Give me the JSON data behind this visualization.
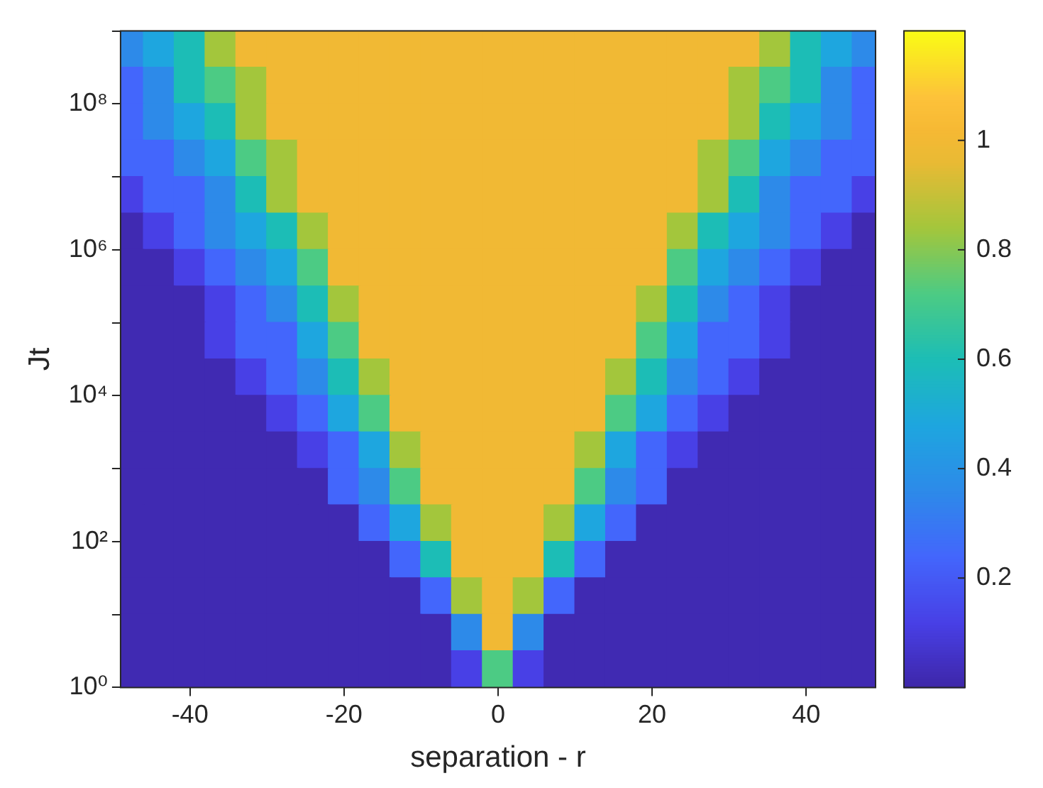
{
  "chart_data": {
    "type": "heatmap",
    "xlabel": "separation - r",
    "ylabel": "Jt",
    "x": [
      -48,
      -44,
      -40,
      -36,
      -32,
      -28,
      -24,
      -20,
      -16,
      -12,
      -8,
      -4,
      0,
      4,
      8,
      12,
      16,
      20,
      24,
      28,
      32,
      36,
      40,
      44,
      48
    ],
    "y": [
      562000000,
      178000000,
      56200000,
      17800000,
      5620000,
      1780000,
      562000,
      178000,
      56200,
      17800,
      5620,
      1780,
      562,
      178,
      56.2,
      17.8,
      5.62,
      1.78
    ],
    "xlim": [
      -49,
      49
    ],
    "xticks": [
      -40,
      -20,
      0,
      20,
      40
    ],
    "ylim": [
      1,
      1000000000
    ],
    "log": "y",
    "yticks": [
      {
        "value": 1,
        "label": "10⁰"
      },
      {
        "value": 10,
        "label": null
      },
      {
        "value": 100,
        "label": "10²"
      },
      {
        "value": 1000,
        "label": null
      },
      {
        "value": 10000,
        "label": "10⁴"
      },
      {
        "value": 100000,
        "label": null
      },
      {
        "value": 1000000,
        "label": "10⁶"
      },
      {
        "value": 10000000,
        "label": null
      },
      {
        "value": 100000000,
        "label": "10⁸"
      },
      {
        "value": 1000000000,
        "label": null
      }
    ],
    "clim": [
      0,
      1.2
    ],
    "cticks": [
      0.2,
      0.4,
      0.6,
      0.8,
      1
    ],
    "cells": [
      [
        0.36,
        0.48,
        0.6,
        0.84,
        1,
        1,
        1,
        1,
        1,
        1,
        1,
        1,
        1,
        1,
        1,
        1,
        1,
        1,
        1,
        1,
        1,
        0.84,
        0.6,
        0.48,
        0.36
      ],
      [
        0.24,
        0.36,
        0.6,
        0.72,
        0.84,
        1,
        1,
        1,
        1,
        1,
        1,
        1,
        1,
        1,
        1,
        1,
        1,
        1,
        1,
        1,
        0.84,
        0.72,
        0.6,
        0.36,
        0.24
      ],
      [
        0.24,
        0.36,
        0.48,
        0.6,
        0.84,
        1,
        1,
        1,
        1,
        1,
        1,
        1,
        1,
        1,
        1,
        1,
        1,
        1,
        1,
        1,
        0.84,
        0.6,
        0.48,
        0.36,
        0.24
      ],
      [
        0.24,
        0.24,
        0.36,
        0.48,
        0.72,
        0.84,
        1,
        1,
        1,
        1,
        1,
        1,
        1,
        1,
        1,
        1,
        1,
        1,
        1,
        0.84,
        0.72,
        0.48,
        0.36,
        0.24,
        0.24
      ],
      [
        0.12,
        0.24,
        0.24,
        0.36,
        0.6,
        0.84,
        1,
        1,
        1,
        1,
        1,
        1,
        1,
        1,
        1,
        1,
        1,
        1,
        1,
        0.84,
        0.6,
        0.36,
        0.24,
        0.24,
        0.12
      ],
      [
        0.02,
        0.12,
        0.24,
        0.36,
        0.48,
        0.6,
        0.84,
        1,
        1,
        1,
        1,
        1,
        1,
        1,
        1,
        1,
        1,
        1,
        0.84,
        0.6,
        0.48,
        0.36,
        0.24,
        0.12,
        0.02
      ],
      [
        0.02,
        0.02,
        0.12,
        0.24,
        0.36,
        0.48,
        0.72,
        1,
        1,
        1,
        1,
        1,
        1,
        1,
        1,
        1,
        1,
        1,
        0.72,
        0.48,
        0.36,
        0.24,
        0.12,
        0.02,
        0.02
      ],
      [
        0.02,
        0.02,
        0.02,
        0.12,
        0.24,
        0.36,
        0.6,
        0.84,
        1,
        1,
        1,
        1,
        1,
        1,
        1,
        1,
        1,
        0.84,
        0.6,
        0.36,
        0.24,
        0.12,
        0.02,
        0.02,
        0.02
      ],
      [
        0.02,
        0.02,
        0.02,
        0.12,
        0.24,
        0.24,
        0.48,
        0.72,
        1,
        1,
        1,
        1,
        1,
        1,
        1,
        1,
        1,
        0.72,
        0.48,
        0.24,
        0.24,
        0.12,
        0.02,
        0.02,
        0.02
      ],
      [
        0.02,
        0.02,
        0.02,
        0.02,
        0.12,
        0.24,
        0.36,
        0.6,
        0.84,
        1,
        1,
        1,
        1,
        1,
        1,
        1,
        0.84,
        0.6,
        0.36,
        0.24,
        0.12,
        0.02,
        0.02,
        0.02,
        0.02
      ],
      [
        0.02,
        0.02,
        0.02,
        0.02,
        0.02,
        0.12,
        0.24,
        0.48,
        0.72,
        1,
        1,
        1,
        1,
        1,
        1,
        1,
        0.72,
        0.48,
        0.24,
        0.12,
        0.02,
        0.02,
        0.02,
        0.02,
        0.02
      ],
      [
        0.02,
        0.02,
        0.02,
        0.02,
        0.02,
        0.02,
        0.12,
        0.24,
        0.48,
        0.84,
        1,
        1,
        1,
        1,
        1,
        0.84,
        0.48,
        0.24,
        0.12,
        0.02,
        0.02,
        0.02,
        0.02,
        0.02,
        0.02
      ],
      [
        0.02,
        0.02,
        0.02,
        0.02,
        0.02,
        0.02,
        0.02,
        0.24,
        0.36,
        0.72,
        1,
        1,
        1,
        1,
        1,
        0.72,
        0.36,
        0.24,
        0.02,
        0.02,
        0.02,
        0.02,
        0.02,
        0.02,
        0.02
      ],
      [
        0.02,
        0.02,
        0.02,
        0.02,
        0.02,
        0.02,
        0.02,
        0.02,
        0.24,
        0.48,
        0.84,
        1,
        1,
        1,
        0.84,
        0.48,
        0.24,
        0.02,
        0.02,
        0.02,
        0.02,
        0.02,
        0.02,
        0.02,
        0.02
      ],
      [
        0.02,
        0.02,
        0.02,
        0.02,
        0.02,
        0.02,
        0.02,
        0.02,
        0.02,
        0.24,
        0.6,
        1,
        1,
        1,
        0.6,
        0.24,
        0.02,
        0.02,
        0.02,
        0.02,
        0.02,
        0.02,
        0.02,
        0.02,
        0.02
      ],
      [
        0.02,
        0.02,
        0.02,
        0.02,
        0.02,
        0.02,
        0.02,
        0.02,
        0.02,
        0.02,
        0.24,
        0.84,
        1,
        0.84,
        0.24,
        0.02,
        0.02,
        0.02,
        0.02,
        0.02,
        0.02,
        0.02,
        0.02,
        0.02,
        0.02
      ],
      [
        0.02,
        0.02,
        0.02,
        0.02,
        0.02,
        0.02,
        0.02,
        0.02,
        0.02,
        0.02,
        0.02,
        0.36,
        1,
        0.36,
        0.02,
        0.02,
        0.02,
        0.02,
        0.02,
        0.02,
        0.02,
        0.02,
        0.02,
        0.02,
        0.02
      ],
      [
        0.02,
        0.02,
        0.02,
        0.02,
        0.02,
        0.02,
        0.02,
        0.02,
        0.02,
        0.02,
        0.02,
        0.12,
        0.72,
        0.12,
        0.02,
        0.02,
        0.02,
        0.02,
        0.02,
        0.02,
        0.02,
        0.02,
        0.02,
        0.02,
        0.02
      ]
    ]
  }
}
